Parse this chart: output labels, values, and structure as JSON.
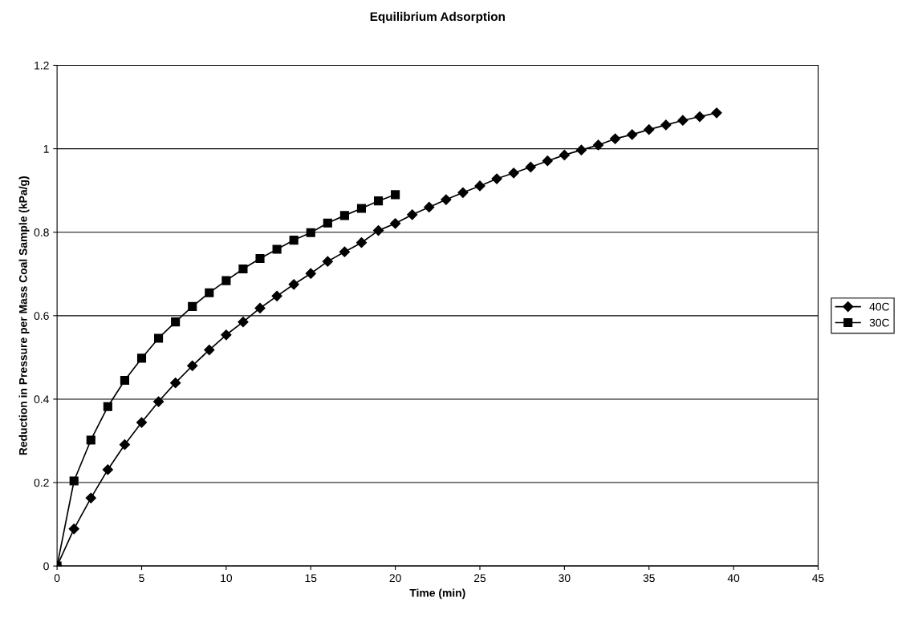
{
  "chart_data": {
    "type": "line",
    "title": "Equilibrium Adsorption",
    "xlabel": "Time (min)",
    "ylabel": "Reduction in Pressure per Mass Coal Sample (kPa/g)",
    "xlim": [
      0,
      45
    ],
    "xticks": [
      0,
      5,
      10,
      15,
      20,
      25,
      30,
      35,
      40,
      45
    ],
    "ylim": [
      0,
      1.2
    ],
    "yticks": [
      0,
      0.2,
      0.4,
      0.6,
      0.8,
      1,
      1.2
    ],
    "grid": "y",
    "legend": "right",
    "line_style": "solid",
    "series": [
      {
        "name": "40C",
        "color": "#000000",
        "marker": "diamond",
        "x": [
          0,
          1,
          2,
          3,
          4,
          5,
          6,
          7,
          8,
          9,
          10,
          11,
          12,
          13,
          14,
          15,
          16,
          17,
          18,
          19,
          20,
          21,
          22,
          23,
          24,
          25,
          26,
          27,
          28,
          29,
          30,
          31,
          32,
          33,
          34,
          35,
          36,
          37,
          38,
          39
        ],
        "values": [
          0,
          0.089,
          0.163,
          0.231,
          0.291,
          0.344,
          0.394,
          0.439,
          0.48,
          0.518,
          0.554,
          0.585,
          0.618,
          0.647,
          0.675,
          0.701,
          0.73,
          0.753,
          0.775,
          0.804,
          0.821,
          0.842,
          0.86,
          0.878,
          0.895,
          0.911,
          0.928,
          0.942,
          0.956,
          0.971,
          0.985,
          0.997,
          1.009,
          1.024,
          1.034,
          1.046,
          1.057,
          1.068,
          1.077,
          1.086
        ]
      },
      {
        "name": "30C",
        "color": "#000000",
        "marker": "square",
        "x": [
          0,
          1,
          2,
          3,
          4,
          5,
          6,
          7,
          8,
          9,
          10,
          11,
          12,
          13,
          14,
          15,
          16,
          17,
          18,
          19,
          20
        ],
        "values": [
          0,
          0.204,
          0.302,
          0.382,
          0.445,
          0.498,
          0.546,
          0.585,
          0.622,
          0.655,
          0.684,
          0.712,
          0.737,
          0.759,
          0.781,
          0.799,
          0.822,
          0.84,
          0.857,
          0.875,
          0.89
        ]
      }
    ]
  }
}
